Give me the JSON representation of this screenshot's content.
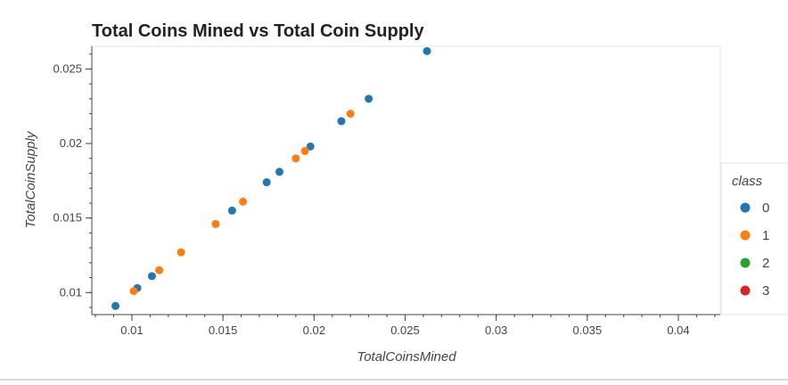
{
  "chart_data": {
    "type": "scatter",
    "title": "Total Coins Mined vs Total Coin Supply",
    "xlabel": "TotalCoinsMined",
    "ylabel": "TotalCoinSupply",
    "xlim": [
      0.0078,
      0.0423
    ],
    "ylim": [
      0.00852,
      0.02652
    ],
    "xticks": [
      0.01,
      0.015,
      0.02,
      0.025,
      0.03,
      0.035,
      0.04
    ],
    "xtick_labels": [
      "0.01",
      "0.015",
      "0.02",
      "0.025",
      "0.03",
      "0.035",
      "0.04"
    ],
    "yticks": [
      0.01,
      0.015,
      0.02,
      0.025
    ],
    "ytick_labels": [
      "0.01",
      "0.015",
      "0.02",
      "0.025"
    ],
    "grid": false,
    "legend": {
      "title": "class",
      "placement": "right",
      "entries": [
        {
          "label": "0",
          "color": "#1f77b4"
        },
        {
          "label": "1",
          "color": "#ff7f0e"
        },
        {
          "label": "2",
          "color": "#2ca02c"
        },
        {
          "label": "3",
          "color": "#d62728"
        }
      ]
    },
    "series": [
      {
        "name": "0",
        "color": "#1f77b4",
        "points": [
          [
            0.0091,
            0.0091
          ],
          [
            0.0103,
            0.0103
          ],
          [
            0.0111,
            0.0111
          ],
          [
            0.0155,
            0.0155
          ],
          [
            0.0174,
            0.0174
          ],
          [
            0.0181,
            0.0181
          ],
          [
            0.0198,
            0.0198
          ],
          [
            0.0215,
            0.0215
          ],
          [
            0.023,
            0.023
          ],
          [
            0.0262,
            0.0262
          ]
        ]
      },
      {
        "name": "1",
        "color": "#ff7f0e",
        "points": [
          [
            0.0101,
            0.0101
          ],
          [
            0.0115,
            0.0115
          ],
          [
            0.0127,
            0.0127
          ],
          [
            0.0146,
            0.0146
          ],
          [
            0.0161,
            0.0161
          ],
          [
            0.019,
            0.019
          ],
          [
            0.0195,
            0.0195
          ],
          [
            0.022,
            0.022
          ]
        ]
      },
      {
        "name": "2",
        "color": "#2ca02c",
        "points": []
      },
      {
        "name": "3",
        "color": "#d62728",
        "points": []
      }
    ]
  }
}
